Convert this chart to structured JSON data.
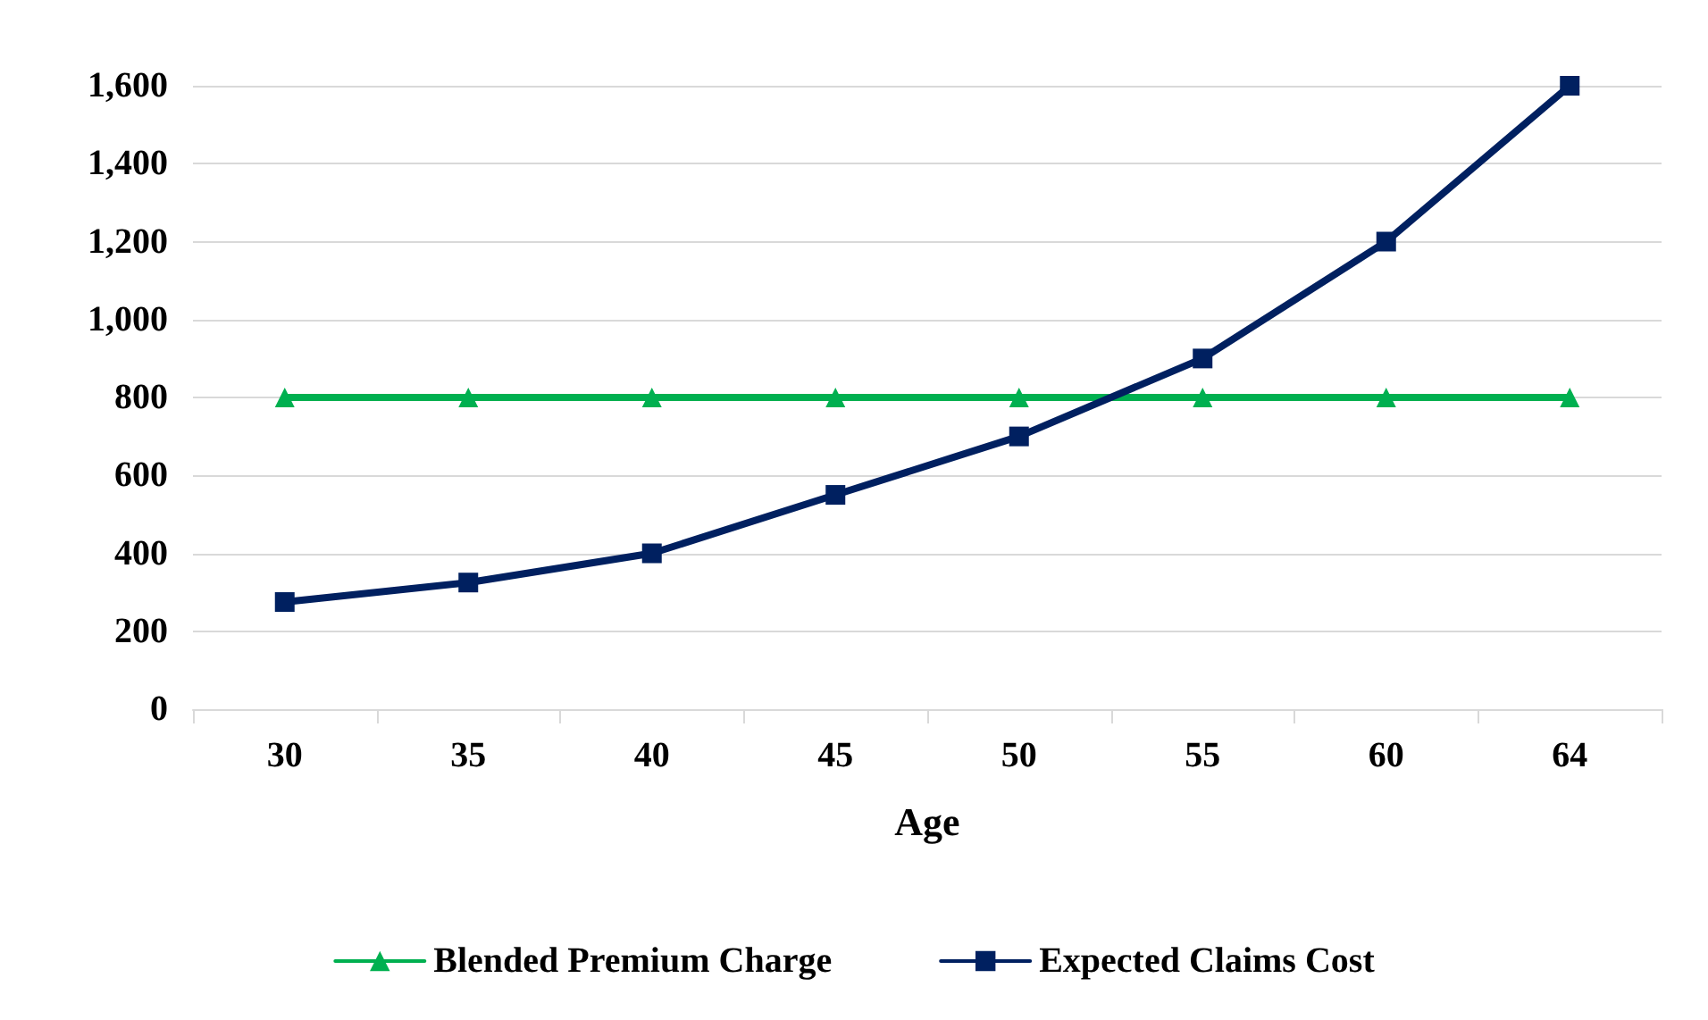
{
  "chart_data": {
    "type": "line",
    "xlabel": "Age",
    "categories": [
      "30",
      "35",
      "40",
      "45",
      "50",
      "55",
      "60",
      "64"
    ],
    "series": [
      {
        "name": "Blended Premium Charge",
        "color": "#00b050",
        "marker": "triangle",
        "values": [
          800,
          800,
          800,
          800,
          800,
          800,
          800,
          800
        ]
      },
      {
        "name": "Expected Claims Cost",
        "color": "#002060",
        "marker": "square",
        "values": [
          275,
          325,
          400,
          550,
          700,
          900,
          1200,
          1600
        ]
      }
    ],
    "ylim": [
      0,
      1600
    ],
    "yticks": [
      0,
      200,
      400,
      600,
      800,
      {
        "value": 1000,
        "label": "1,000"
      },
      {
        "value": 1200,
        "label": "1,200"
      },
      {
        "value": 1400,
        "label": "1,400"
      },
      {
        "value": 1600,
        "label": "1,600"
      }
    ],
    "grid": "y",
    "legend": "bottom",
    "line_style": "solid"
  }
}
